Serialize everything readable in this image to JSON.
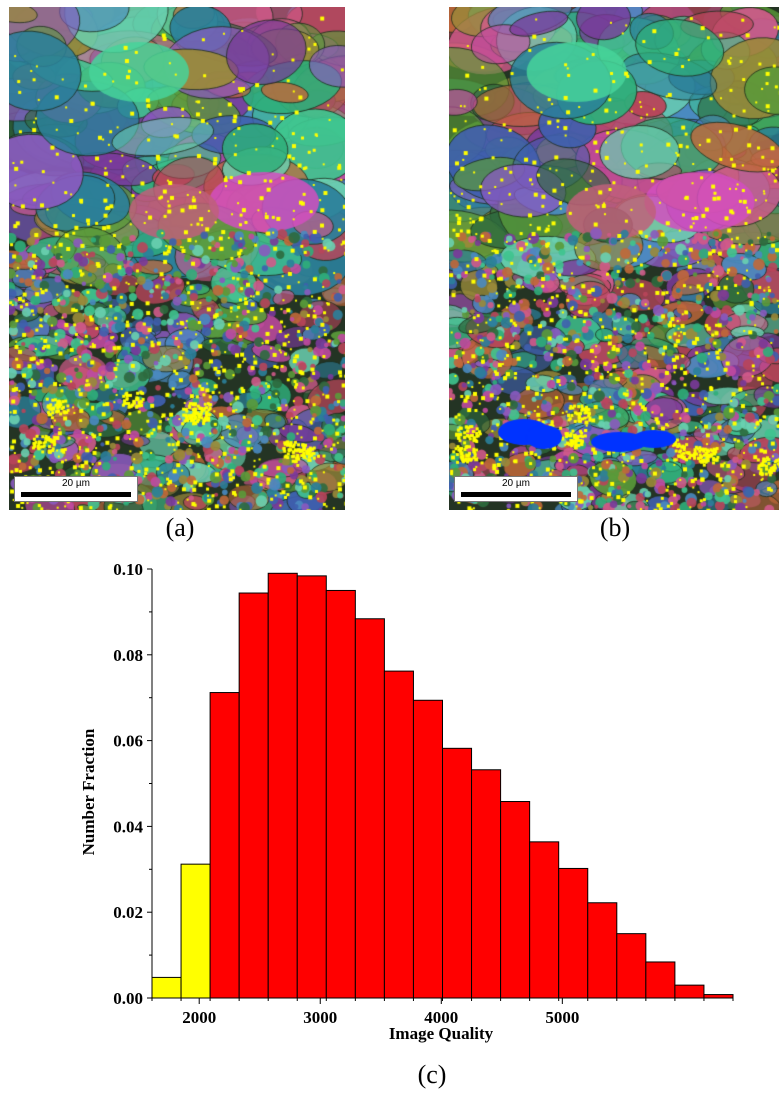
{
  "panels": [
    {
      "caption": "(a)",
      "scalebar_label": "20 µm"
    },
    {
      "caption": "(b)",
      "scalebar_label": "20 µm"
    }
  ],
  "figure_caption": "(c)",
  "colors": {
    "highlight": "#ffff00",
    "bar": "#ff0000",
    "low_iq_bar": "#ffff00",
    "region": "#0033ff"
  },
  "chart_data": {
    "type": "bar",
    "title": "",
    "xlabel": "Image Quality",
    "ylabel": "Number Fraction",
    "xlim": [
      1650,
      5950
    ],
    "ylim": [
      0,
      0.1
    ],
    "xticks": [
      2000,
      3000,
      4000,
      5000
    ],
    "xtick_labels": [
      "2000",
      "3000",
      "4000",
      "5000"
    ],
    "yticks": [
      0.0,
      0.02,
      0.04,
      0.06,
      0.08,
      0.1
    ],
    "ytick_labels": [
      "0.00",
      "0.02",
      "0.04",
      "0.06",
      "0.08",
      "0.10"
    ],
    "bin_width": 240,
    "bins": [
      {
        "start": 1650,
        "value": 0.0048,
        "color": "#ffff00"
      },
      {
        "start": 1850,
        "value": 0.0312,
        "color": "#ffff00"
      },
      {
        "start": 2090,
        "value": 0.0712,
        "color": "#ff0000"
      },
      {
        "start": 2330,
        "value": 0.0944,
        "color": "#ff0000"
      },
      {
        "start": 2570,
        "value": 0.099,
        "color": "#ff0000"
      },
      {
        "start": 2810,
        "value": 0.0984,
        "color": "#ff0000"
      },
      {
        "start": 3050,
        "value": 0.095,
        "color": "#ff0000"
      },
      {
        "start": 3290,
        "value": 0.0884,
        "color": "#ff0000"
      },
      {
        "start": 3530,
        "value": 0.0762,
        "color": "#ff0000"
      },
      {
        "start": 3770,
        "value": 0.0694,
        "color": "#ff0000"
      },
      {
        "start": 4010,
        "value": 0.0582,
        "color": "#ff0000"
      },
      {
        "start": 4250,
        "value": 0.0532,
        "color": "#ff0000"
      },
      {
        "start": 4490,
        "value": 0.0458,
        "color": "#ff0000"
      },
      {
        "start": 4730,
        "value": 0.0364,
        "color": "#ff0000"
      },
      {
        "start": 4970,
        "value": 0.0302,
        "color": "#ff0000"
      },
      {
        "start": 5210,
        "value": 0.0222,
        "color": "#ff0000"
      },
      {
        "start": 5450,
        "value": 0.015,
        "color": "#ff0000"
      },
      {
        "start": 5690,
        "value": 0.0084,
        "color": "#ff0000"
      },
      {
        "start": 5930,
        "value": 0.003,
        "color": "#ff0000"
      },
      {
        "start": 6170,
        "value": 0.0008,
        "color": "#ff0000"
      }
    ]
  }
}
